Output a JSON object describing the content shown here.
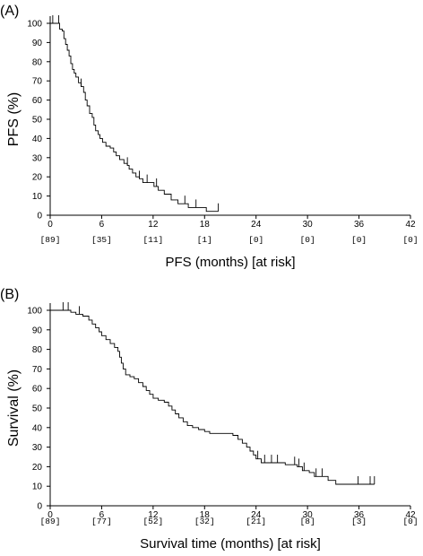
{
  "chart_data": [
    {
      "type": "line",
      "panel_label": "(A)",
      "ylabel": "PFS (%)",
      "xlabel": "PFS (months) [at risk]",
      "xlim": [
        0,
        42
      ],
      "ylim": [
        0,
        100
      ],
      "x_ticks": [
        0,
        6,
        12,
        18,
        24,
        30,
        36,
        42
      ],
      "y_ticks": [
        0,
        10,
        20,
        30,
        40,
        50,
        60,
        70,
        80,
        90,
        100
      ],
      "at_risk": [
        "[89]",
        "[35]",
        "[11]",
        "[1]",
        "[0]",
        "[0]",
        "[0]",
        "[0]"
      ],
      "line_color": "#000000",
      "series": [
        {
          "step": [
            [
              0,
              100
            ],
            [
              1.0,
              100
            ],
            [
              1.1,
              97
            ],
            [
              1.4,
              96
            ],
            [
              1.6,
              92
            ],
            [
              1.8,
              89
            ],
            [
              2.0,
              86
            ],
            [
              2.2,
              83
            ],
            [
              2.4,
              79
            ],
            [
              2.6,
              76
            ],
            [
              2.8,
              74
            ],
            [
              3.0,
              72
            ],
            [
              3.3,
              69
            ],
            [
              3.6,
              67
            ],
            [
              3.9,
              64
            ],
            [
              4.1,
              60
            ],
            [
              4.3,
              57
            ],
            [
              4.6,
              53
            ],
            [
              4.9,
              51
            ],
            [
              5.1,
              47
            ],
            [
              5.3,
              44
            ],
            [
              5.6,
              42
            ],
            [
              5.8,
              40
            ],
            [
              6.1,
              38
            ],
            [
              6.5,
              36
            ],
            [
              7.0,
              35
            ],
            [
              7.4,
              33
            ],
            [
              7.7,
              31
            ],
            [
              8.1,
              29
            ],
            [
              8.6,
              27
            ],
            [
              9.0,
              26
            ],
            [
              9.2,
              24
            ],
            [
              9.6,
              22
            ],
            [
              10.0,
              20
            ],
            [
              10.4,
              19
            ],
            [
              10.8,
              17
            ],
            [
              12.1,
              15
            ],
            [
              12.6,
              13
            ],
            [
              13.3,
              11
            ],
            [
              14.1,
              8
            ],
            [
              14.9,
              6
            ],
            [
              16.1,
              4
            ],
            [
              18.2,
              2
            ],
            [
              19.6,
              2
            ]
          ],
          "censored": [
            [
              0.3,
              100
            ],
            [
              1.0,
              100
            ],
            [
              3.6,
              67
            ],
            [
              9.0,
              26
            ],
            [
              10.4,
              19
            ],
            [
              11.3,
              17
            ],
            [
              12.4,
              15
            ],
            [
              15.7,
              6
            ],
            [
              17.0,
              4
            ],
            [
              19.6,
              2
            ]
          ]
        }
      ]
    },
    {
      "type": "line",
      "panel_label": "(B)",
      "ylabel": "Survival  (%)",
      "xlabel": "Survival time (months) [at risk]",
      "xlim": [
        0,
        42
      ],
      "ylim": [
        0,
        100
      ],
      "x_ticks": [
        0,
        6,
        12,
        18,
        24,
        30,
        36,
        42
      ],
      "y_ticks": [
        0,
        10,
        20,
        30,
        40,
        50,
        60,
        70,
        80,
        90,
        100
      ],
      "at_risk": [
        "[89]",
        "[77]",
        "[52]",
        "[32]",
        "[21]",
        "[8]",
        "[3]",
        "[0]"
      ],
      "line_color": "#000000",
      "series": [
        {
          "step": [
            [
              0,
              100
            ],
            [
              2.4,
              99
            ],
            [
              3.0,
              98
            ],
            [
              3.8,
              97
            ],
            [
              4.5,
              95
            ],
            [
              4.9,
              93
            ],
            [
              5.3,
              91
            ],
            [
              5.7,
              89
            ],
            [
              6.0,
              87
            ],
            [
              6.5,
              85
            ],
            [
              7.0,
              83
            ],
            [
              7.5,
              81
            ],
            [
              7.9,
              79
            ],
            [
              8.1,
              76
            ],
            [
              8.3,
              73
            ],
            [
              8.5,
              70
            ],
            [
              8.8,
              67
            ],
            [
              9.3,
              66
            ],
            [
              9.8,
              65
            ],
            [
              10.3,
              63
            ],
            [
              10.8,
              61
            ],
            [
              11.2,
              59
            ],
            [
              11.6,
              57
            ],
            [
              12.0,
              55
            ],
            [
              12.6,
              54
            ],
            [
              13.3,
              53
            ],
            [
              13.8,
              51
            ],
            [
              14.2,
              49
            ],
            [
              14.6,
              47
            ],
            [
              15.0,
              45
            ],
            [
              15.5,
              43
            ],
            [
              16.0,
              41
            ],
            [
              16.6,
              40
            ],
            [
              17.3,
              39
            ],
            [
              18.0,
              38
            ],
            [
              18.6,
              37
            ],
            [
              21.3,
              36
            ],
            [
              21.9,
              34
            ],
            [
              22.4,
              32
            ],
            [
              22.9,
              30
            ],
            [
              23.3,
              28
            ],
            [
              23.7,
              26
            ],
            [
              24.0,
              24
            ],
            [
              24.6,
              22
            ],
            [
              27.4,
              21
            ],
            [
              28.8,
              20
            ],
            [
              29.4,
              18
            ],
            [
              30.2,
              17
            ],
            [
              30.8,
              15
            ],
            [
              32.4,
              13
            ],
            [
              33.3,
              11
            ],
            [
              37.8,
              11
            ]
          ],
          "censored": [
            [
              1.5,
              100
            ],
            [
              2.1,
              100
            ],
            [
              3.4,
              98
            ],
            [
              24.2,
              24
            ],
            [
              25.0,
              22
            ],
            [
              25.8,
              22
            ],
            [
              26.5,
              22
            ],
            [
              28.5,
              21
            ],
            [
              29.0,
              20
            ],
            [
              29.6,
              18
            ],
            [
              31.0,
              15
            ],
            [
              31.7,
              15
            ],
            [
              35.9,
              11
            ],
            [
              37.3,
              11
            ],
            [
              37.8,
              11
            ]
          ]
        }
      ]
    }
  ]
}
